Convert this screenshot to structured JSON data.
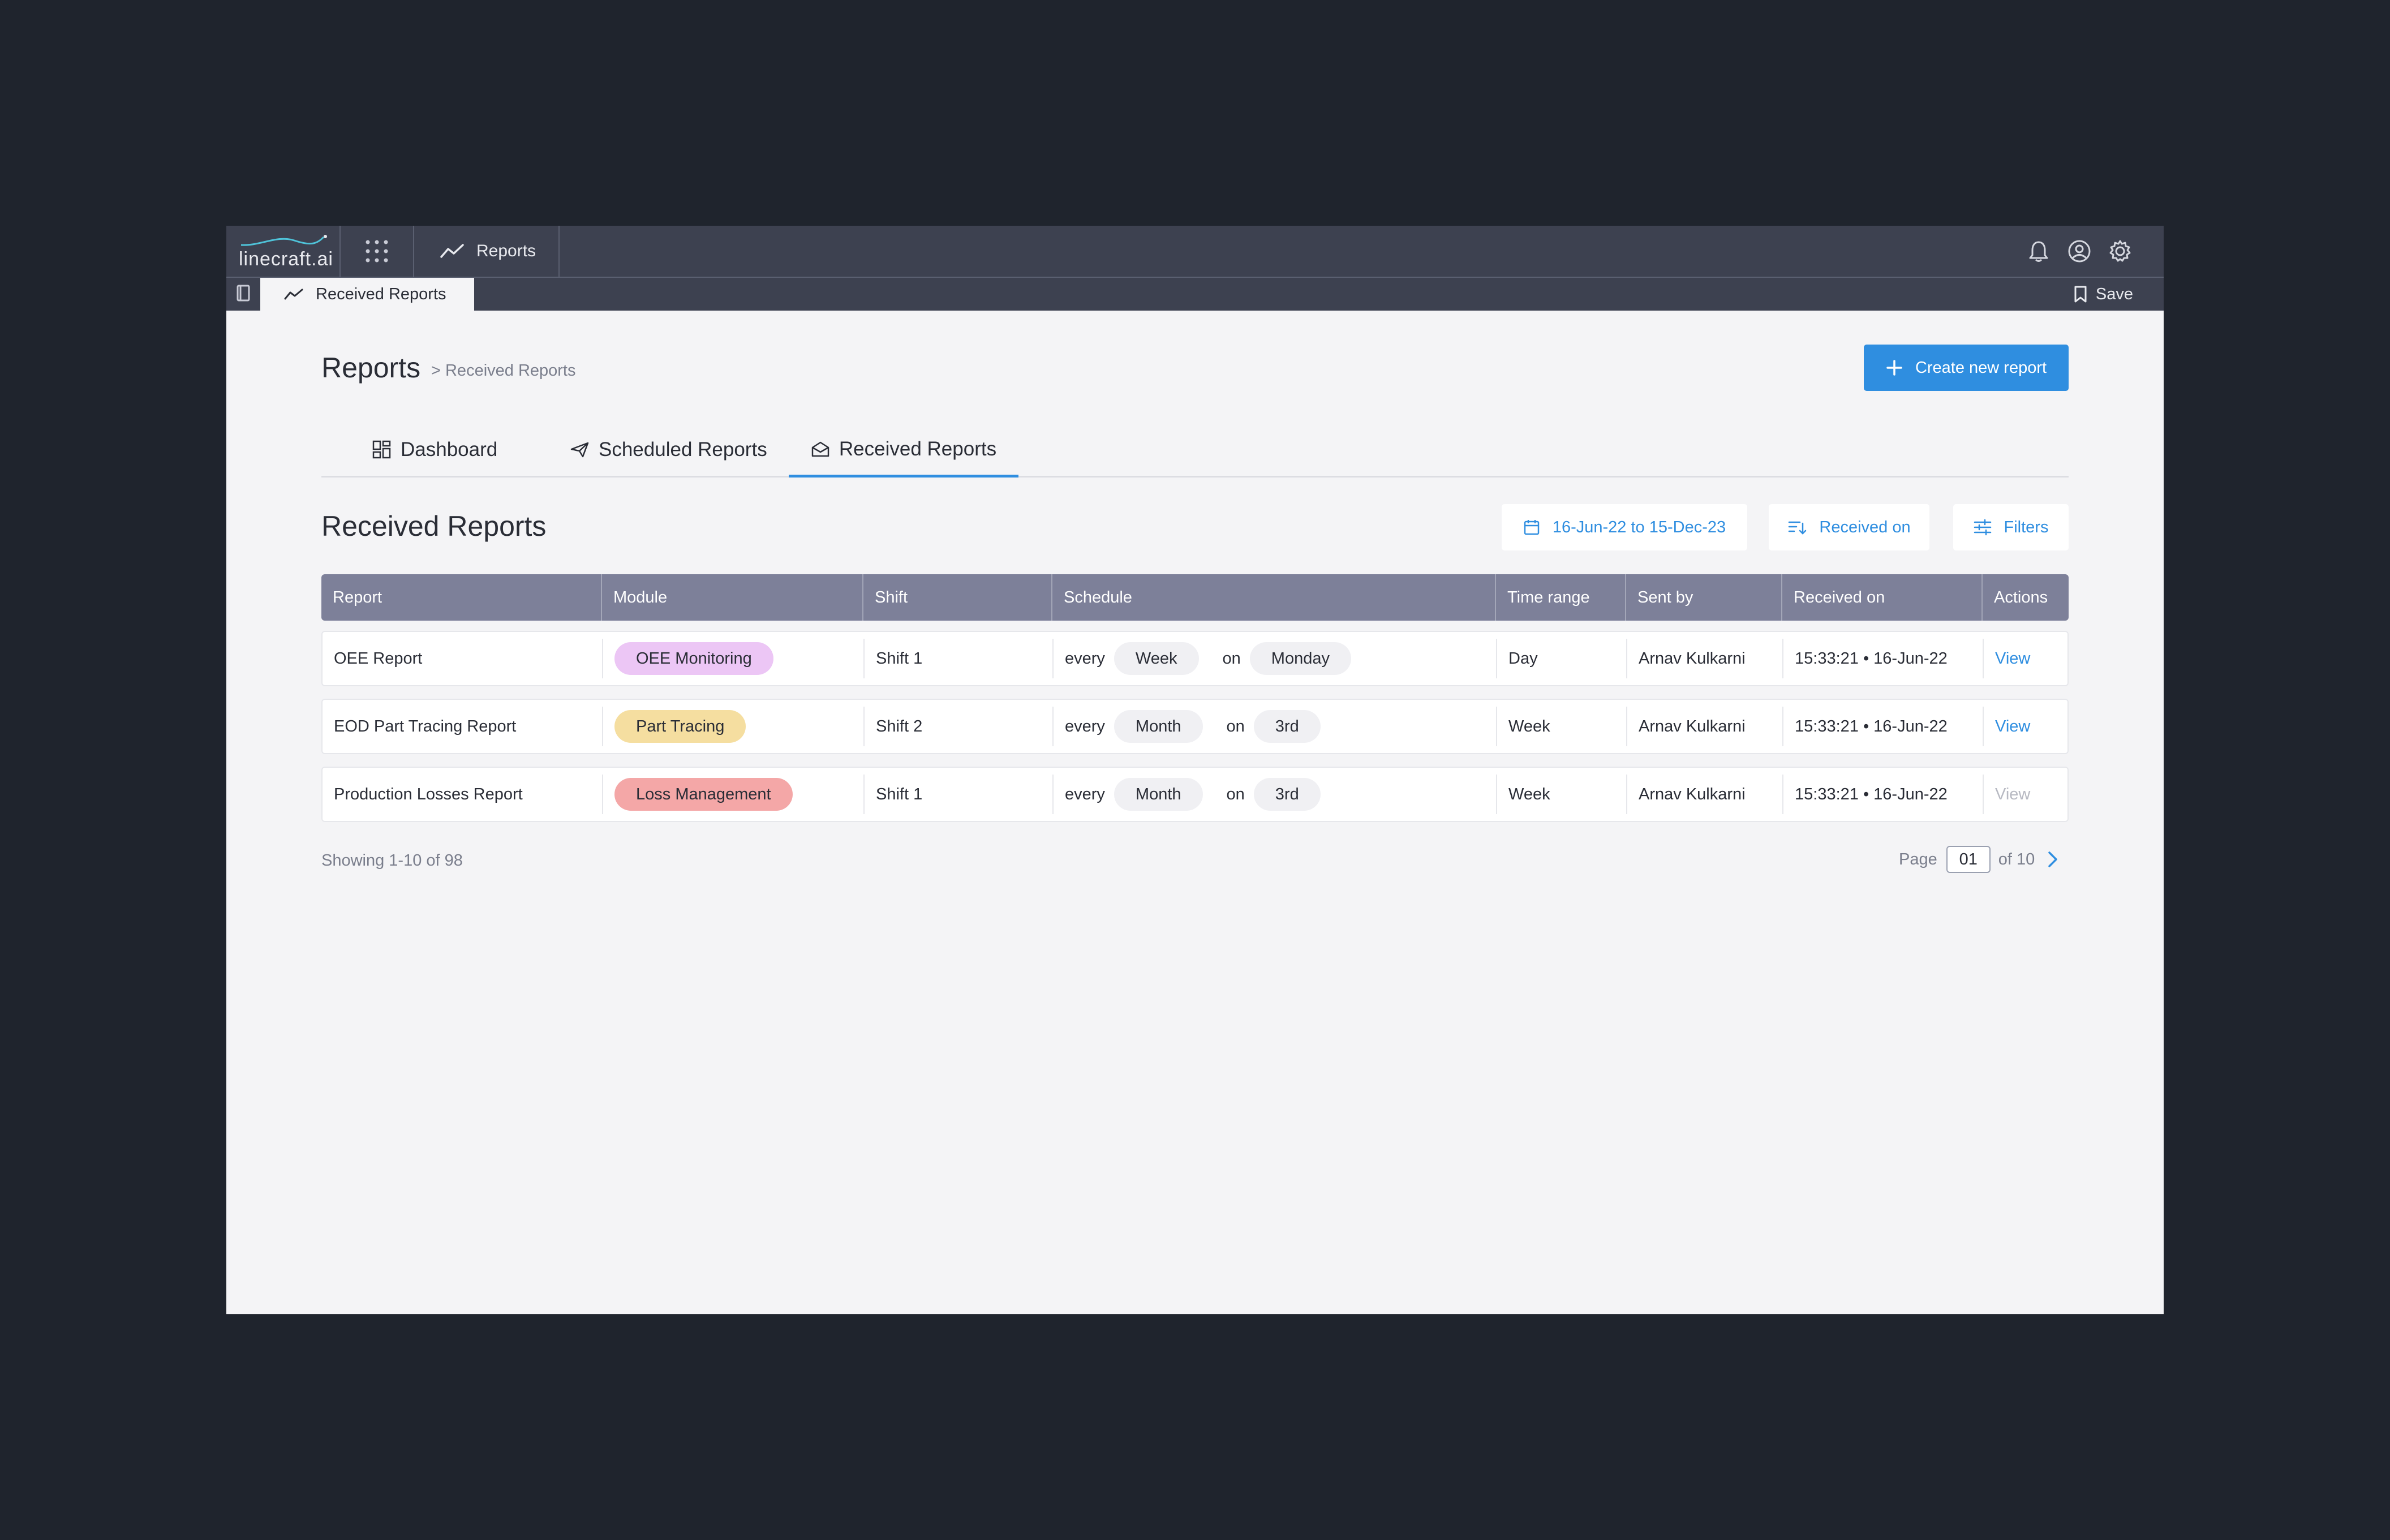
{
  "app": {
    "logo_text": "linecraft.ai",
    "module_tab": "Reports",
    "sub_tab": "Received Reports",
    "save_label": "Save"
  },
  "header": {
    "title": "Reports",
    "breadcrumb": "> Received Reports",
    "create_button": "Create new report"
  },
  "tabs": [
    {
      "label": "Dashboard",
      "icon": "dashboard-icon",
      "active": false
    },
    {
      "label": "Scheduled Reports",
      "icon": "paper-plane-icon",
      "active": false
    },
    {
      "label": "Received Reports",
      "icon": "envelope-open-icon",
      "active": true
    }
  ],
  "section": {
    "title": "Received Reports",
    "date_range": "16-Jun-22 to 15-Dec-23",
    "sort_label": "Received on",
    "filters_label": "Filters"
  },
  "table": {
    "columns": [
      "Report",
      "Module",
      "Shift",
      "Schedule",
      "Time range",
      "Sent by",
      "Received on",
      "Actions"
    ],
    "rows": [
      {
        "report": "OEE Report",
        "module": "OEE Monitoring",
        "module_color": "#ecc6f5",
        "shift": "Shift 1",
        "every": "every",
        "period": "Week",
        "on": "on",
        "day": "Monday",
        "time_range": "Day",
        "sent_by": "Arnav Kulkarni",
        "received_on": "15:33:21 • 16-Jun-22",
        "action": "View",
        "action_enabled": true
      },
      {
        "report": "EOD Part Tracing Report",
        "module": "Part Tracing",
        "module_color": "#f5dea0",
        "shift": "Shift 2",
        "every": "every",
        "period": "Month",
        "on": "on",
        "day": "3rd",
        "time_range": "Week",
        "sent_by": "Arnav Kulkarni",
        "received_on": "15:33:21 • 16-Jun-22",
        "action": "View",
        "action_enabled": true
      },
      {
        "report": "Production Losses Report",
        "module": "Loss Management",
        "module_color": "#f4a7a7",
        "shift": "Shift 1",
        "every": "every",
        "period": "Month",
        "on": "on",
        "day": "3rd",
        "time_range": "Week",
        "sent_by": "Arnav Kulkarni",
        "received_on": "15:33:21 • 16-Jun-22",
        "action": "View",
        "action_enabled": false
      }
    ]
  },
  "footer": {
    "showing": "Showing 1-10 of 98",
    "page_label": "Page",
    "page_value": "01",
    "page_of": "of 10"
  },
  "colors": {
    "accent": "#2f8ee0",
    "topbar": "#3d4150",
    "table_header": "#7d8099"
  }
}
